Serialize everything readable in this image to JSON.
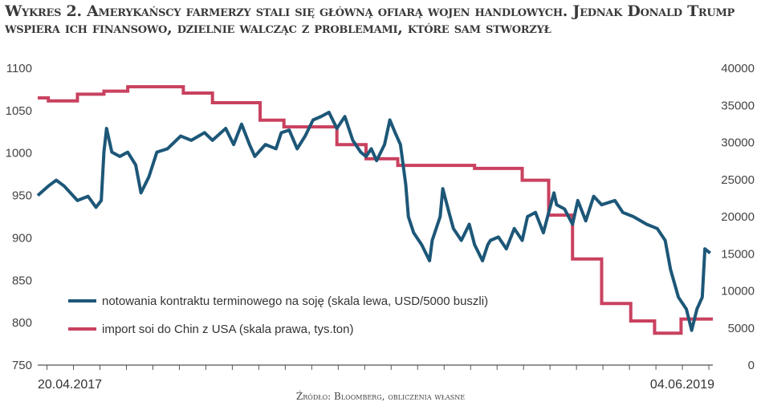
{
  "title": "Wykres 2. Amerykańscy farmerzy stali się główną ofiarą wojen handlowych. Jednak Donald Trump wspiera ich finansowo, dzielnie walcząc z problemami, które sam stworzył",
  "source": "Źródło: Bloomberg, obliczenia własne",
  "chart_data": {
    "type": "line",
    "title": "Wykres 2. Amerykańscy farmerzy stali się główną ofiarą wojen handlowych. Jednak Donald Trump wspiera ich finansowo, dzielnie walcząc z problemami, które sam stworzył",
    "x_unit": "months since 20.04.2017",
    "xlim": [
      0,
      25.5
    ],
    "x_tick_labels": [
      "20.04.2017",
      "04.06.2019"
    ],
    "y_left": {
      "ylim": [
        750,
        1100
      ],
      "ticks": [
        "1100",
        "1050",
        "1000",
        "950",
        "900",
        "850",
        "800",
        "750"
      ]
    },
    "y_right": {
      "ylim": [
        0,
        40000
      ],
      "ticks": [
        "40000",
        "35000",
        "30000",
        "25000",
        "20000",
        "15000",
        "10000",
        "5000",
        "0"
      ]
    },
    "grid": false,
    "legend_position": "bottom-left",
    "series": [
      {
        "name": "notowania kontraktu terminowego na soję (skala lewa, USD/5000 buszli)",
        "axis": "left",
        "color": "#1d5778",
        "style": "line",
        "x": [
          0,
          0.4,
          0.7,
          1.0,
          1.5,
          1.9,
          2.2,
          2.4,
          2.5,
          2.6,
          2.8,
          3.1,
          3.4,
          3.7,
          3.9,
          4.2,
          4.5,
          4.9,
          5.4,
          5.8,
          6.3,
          6.6,
          7.1,
          7.4,
          7.7,
          8.0,
          8.2,
          8.6,
          9.0,
          9.2,
          9.5,
          9.8,
          10.1,
          10.4,
          10.7,
          11.0,
          11.3,
          11.6,
          11.9,
          12.2,
          12.4,
          12.6,
          12.8,
          13.1,
          13.3,
          13.5,
          13.7,
          13.9,
          14.0,
          14.2,
          14.5,
          14.8,
          14.9,
          15.2,
          15.3,
          15.5,
          15.7,
          16.0,
          16.3,
          16.5,
          16.8,
          17.0,
          17.1,
          17.4,
          17.7,
          18.0,
          18.3,
          18.5,
          18.8,
          19.1,
          19.3,
          19.5,
          19.6,
          19.9,
          20.2,
          20.4,
          20.7,
          21.0,
          21.3,
          21.8,
          22.1,
          22.5,
          23.0,
          23.4,
          23.7,
          23.9,
          24.2,
          24.5,
          24.7,
          24.9,
          25.1,
          25.2,
          25.4
        ],
        "values": [
          950,
          961,
          968,
          961,
          944,
          949,
          936,
          944,
          1001,
          1029,
          1001,
          996,
          1001,
          986,
          953,
          972,
          1001,
          1005,
          1020,
          1015,
          1024,
          1015,
          1029,
          1010,
          1034,
          1010,
          996,
          1010,
          1005,
          1024,
          1027,
          1005,
          1020,
          1039,
          1043,
          1048,
          1029,
          1043,
          1015,
          1001,
          996,
          1005,
          991,
          1010,
          1039,
          1024,
          1010,
          963,
          925,
          906,
          892,
          873,
          897,
          925,
          958,
          934,
          911,
          897,
          916,
          892,
          873,
          892,
          897,
          901,
          887,
          911,
          897,
          925,
          930,
          906,
          930,
          953,
          939,
          934,
          916,
          944,
          920,
          949,
          939,
          944,
          930,
          925,
          916,
          911,
          897,
          863,
          830,
          816,
          791,
          816,
          830,
          887,
          882
        ]
      },
      {
        "name": "import soi do Chin z USA (skala prawa, tys.ton)",
        "axis": "right",
        "color": "#c9415f",
        "style": "step",
        "x": [
          0,
          0.4,
          1.5,
          2.5,
          3.4,
          5.5,
          6.6,
          8.4,
          9.3,
          11.3,
          12.4,
          13.6,
          16.5,
          18.3,
          19.3,
          20.2,
          21.3,
          22.4,
          23.3,
          24.3,
          25.4
        ],
        "values": [
          36000,
          35600,
          36500,
          36900,
          37500,
          36650,
          35350,
          33000,
          32100,
          29700,
          27800,
          26900,
          26500,
          24900,
          20200,
          14300,
          8300,
          5950,
          4300,
          6200,
          6200
        ]
      }
    ]
  }
}
